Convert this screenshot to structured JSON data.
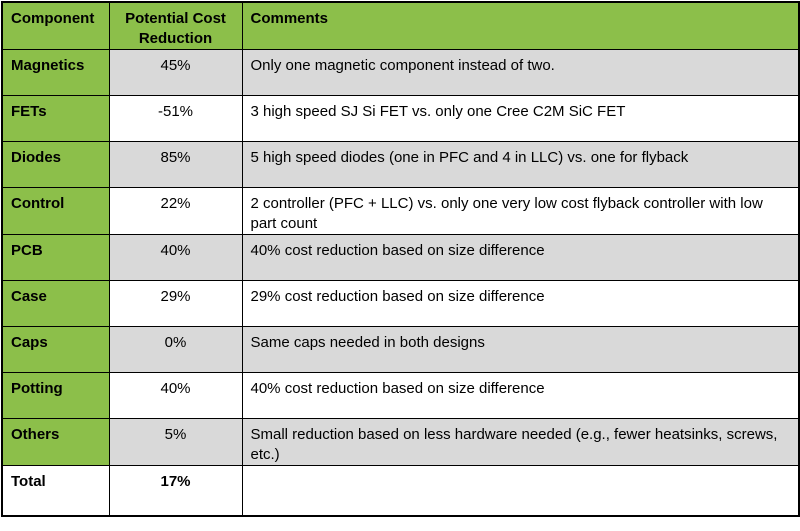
{
  "table": {
    "headers": {
      "component": "Component",
      "cost": "Potential Cost Reduction",
      "comments": "Comments"
    },
    "rows": [
      {
        "component": "Magnetics",
        "cost": "45%",
        "comments": "Only one magnetic component instead of two."
      },
      {
        "component": "FETs",
        "cost": "-51%",
        "comments": "3 high speed SJ Si FET vs. only one Cree C2M SiC FET"
      },
      {
        "component": "Diodes",
        "cost": "85%",
        "comments": "5 high speed diodes (one in PFC and 4 in LLC) vs. one for flyback"
      },
      {
        "component": "Control",
        "cost": "22%",
        "comments": "2 controller (PFC + LLC) vs. only one very low cost flyback controller with low part count"
      },
      {
        "component": "PCB",
        "cost": "40%",
        "comments": "40% cost reduction based on size difference"
      },
      {
        "component": "Case",
        "cost": "29%",
        "comments": "29% cost reduction based on size difference"
      },
      {
        "component": "Caps",
        "cost": "0%",
        "comments": "Same caps needed in both designs"
      },
      {
        "component": "Potting",
        "cost": "40%",
        "comments": "40% cost reduction based on size difference"
      },
      {
        "component": "Others",
        "cost": "5%",
        "comments": "Small reduction based on less hardware needed (e.g., fewer heatsinks, screws, etc.)"
      }
    ],
    "total": {
      "component": "Total",
      "cost": "17%",
      "comments": ""
    }
  },
  "colors": {
    "header_green": "#8cbf4a",
    "row_gray": "#d9d9d9",
    "row_white": "#ffffff"
  }
}
